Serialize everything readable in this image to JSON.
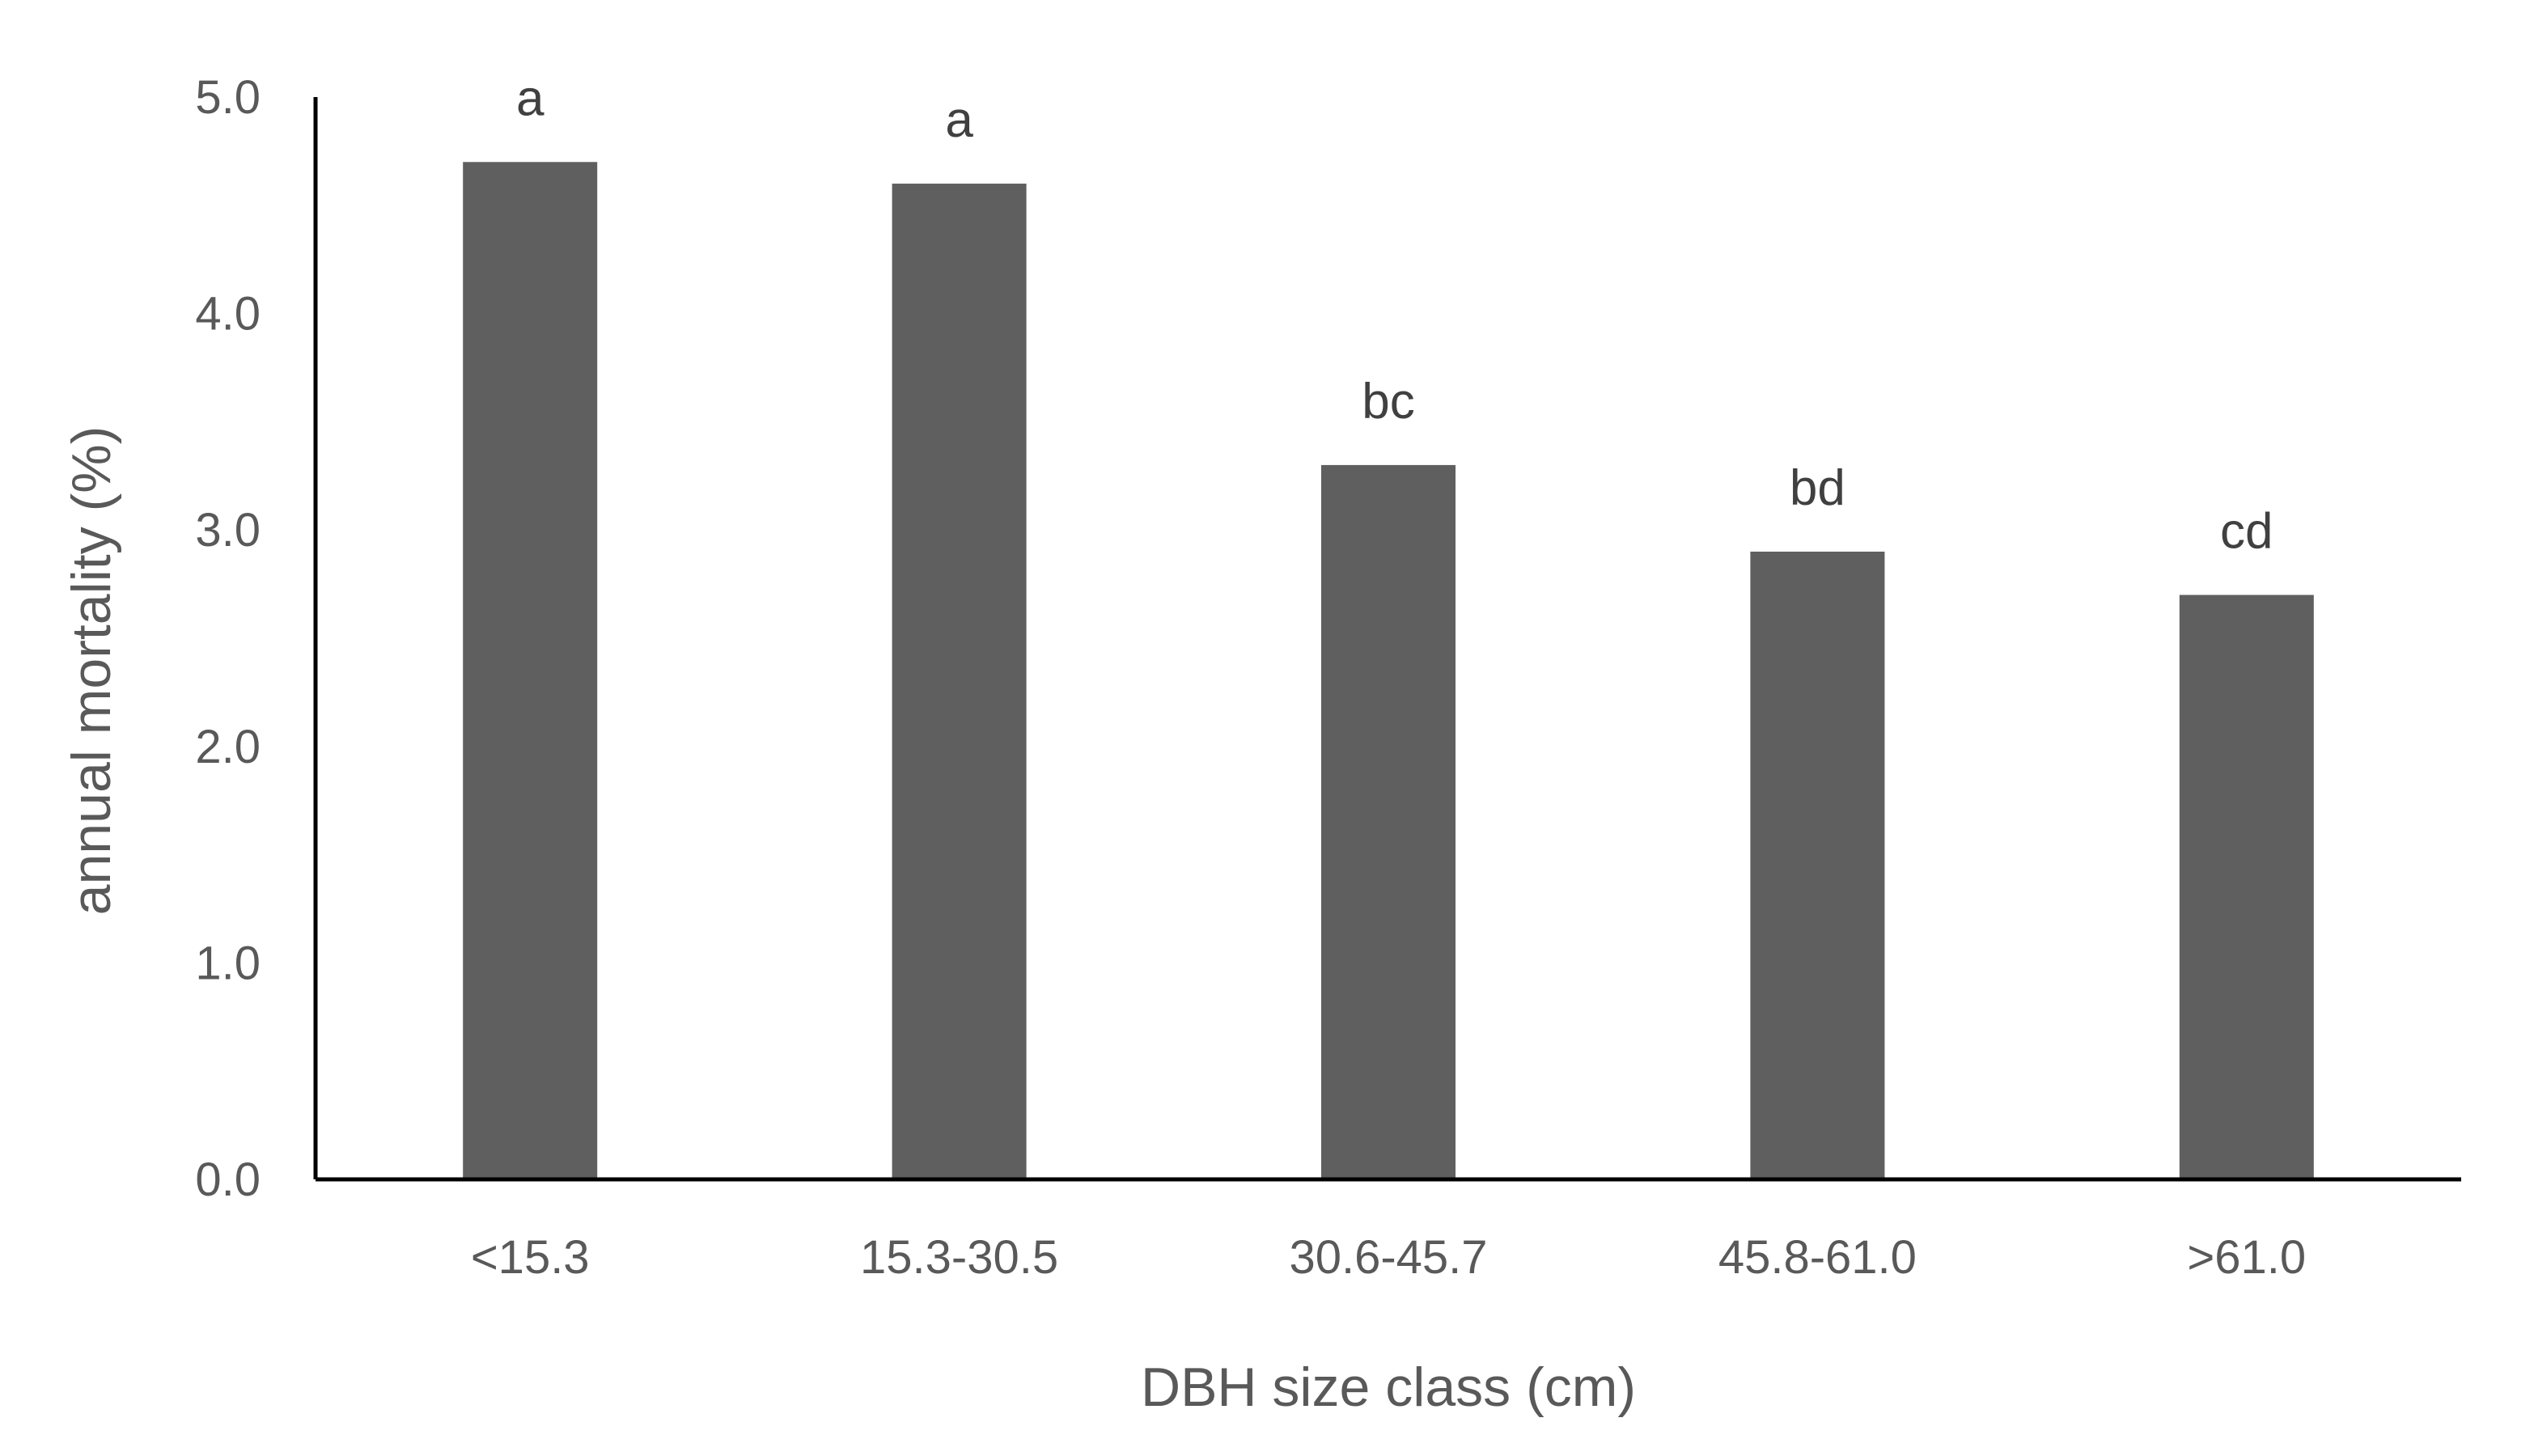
{
  "chart_data": {
    "type": "bar",
    "title": "",
    "xlabel": "DBH size class (cm)",
    "ylabel": "annual mortality (%)",
    "categories": [
      "<15.3",
      "15.3-30.5",
      "30.6-45.7",
      "45.8-61.0",
      ">61.0"
    ],
    "values": [
      4.7,
      4.6,
      3.3,
      2.9,
      2.7
    ],
    "data_labels": [
      "a",
      "a",
      "bc",
      "bd",
      "cd"
    ],
    "ylim": [
      0,
      5
    ],
    "yticks": [
      "0.0",
      "1.0",
      "2.0",
      "3.0",
      "4.0",
      "5.0"
    ],
    "grid": false,
    "legend": "none",
    "colors": {
      "bar": "#5f5f5f",
      "axis": "#000000",
      "tick_text": "#595959",
      "label_text": "#404040"
    }
  }
}
